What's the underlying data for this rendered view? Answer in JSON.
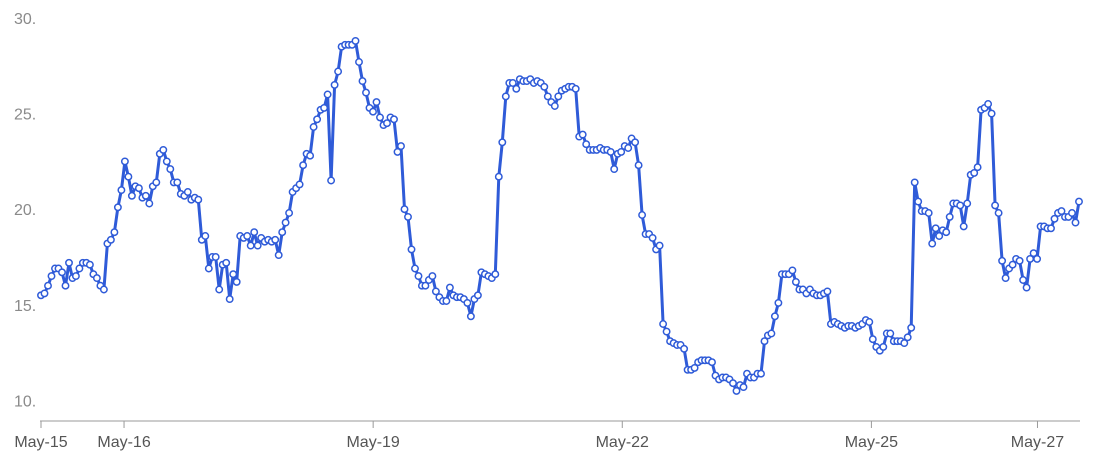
{
  "chart_data": {
    "type": "line",
    "title": "",
    "xlabel": "",
    "ylabel": "",
    "grid": false,
    "legend": "none",
    "line_color": "#2f5bd8",
    "marker_fill": "#ffffff",
    "ylim": [
      9.5,
      30
    ],
    "y_ticks": [
      "10.",
      "15.",
      "20.",
      "25.",
      "30."
    ],
    "y_tick_values": [
      10,
      15,
      20,
      25,
      30
    ],
    "x_ticks": [
      {
        "label": "May-15",
        "day": 0
      },
      {
        "label": "May-16",
        "day": 1
      },
      {
        "label": "May-19",
        "day": 4
      },
      {
        "label": "May-22",
        "day": 7
      },
      {
        "label": "May-25",
        "day": 10
      },
      {
        "label": "May-27",
        "day": 12
      }
    ],
    "xlim_days": [
      0,
      12.5
    ],
    "series": [
      {
        "values": [
          15.5,
          15.6,
          16.0,
          16.5,
          16.9,
          16.9,
          16.7,
          16.0,
          17.2,
          16.4,
          16.5,
          16.9,
          17.2,
          17.2,
          17.1,
          16.6,
          16.4,
          16.0,
          15.8,
          18.2,
          18.4,
          18.8,
          20.1,
          21.0,
          22.5,
          21.7,
          20.7,
          21.2,
          21.1,
          20.6,
          20.7,
          20.3,
          21.2,
          21.4,
          22.9,
          23.1,
          22.5,
          22.1,
          21.4,
          21.4,
          20.8,
          20.7,
          20.9,
          20.5,
          20.6,
          20.5,
          18.4,
          18.6,
          16.9,
          17.5,
          17.5,
          15.8,
          17.1,
          17.2,
          15.3,
          16.6,
          16.2,
          18.6,
          18.5,
          18.6,
          18.1,
          18.8,
          18.1,
          18.5,
          18.3,
          18.4,
          18.3,
          18.4,
          17.6,
          18.8,
          19.3,
          19.8,
          20.9,
          21.1,
          21.3,
          22.3,
          22.9,
          22.8,
          24.3,
          24.7,
          25.2,
          25.3,
          26.0,
          21.5,
          26.5,
          27.2,
          28.5,
          28.6,
          28.6,
          28.6,
          28.8,
          27.7,
          26.7,
          26.1,
          25.3,
          25.1,
          25.6,
          24.8,
          24.4,
          24.5,
          24.8,
          24.7,
          23.0,
          23.3,
          20.0,
          19.6,
          17.9,
          16.9,
          16.5,
          16.0,
          16.0,
          16.3,
          16.5,
          15.7,
          15.4,
          15.2,
          15.2,
          15.9,
          15.5,
          15.4,
          15.4,
          15.3,
          15.1,
          14.4,
          15.3,
          15.5,
          16.7,
          16.6,
          16.5,
          16.4,
          16.6,
          21.7,
          23.5,
          25.9,
          26.6,
          26.6,
          26.3,
          26.8,
          26.7,
          26.7,
          26.8,
          26.6,
          26.7,
          26.6,
          26.4,
          25.9,
          25.6,
          25.4,
          25.9,
          26.2,
          26.3,
          26.4,
          26.4,
          26.3,
          23.8,
          23.9,
          23.4,
          23.1,
          23.1,
          23.1,
          23.2,
          23.1,
          23.1,
          23.0,
          22.1,
          22.9,
          23.0,
          23.3,
          23.2,
          23.7,
          23.5,
          22.3,
          19.7,
          18.7,
          18.7,
          18.5,
          17.9,
          18.1,
          14.0,
          13.6,
          13.1,
          13.0,
          12.9,
          12.9,
          12.7,
          11.6,
          11.6,
          11.7,
          12.0,
          12.1,
          12.1,
          12.1,
          12.0,
          11.3,
          11.1,
          11.2,
          11.2,
          11.1,
          10.9,
          10.5,
          10.8,
          10.7,
          11.4,
          11.2,
          11.2,
          11.4,
          11.4,
          13.1,
          13.4,
          13.5,
          14.4,
          15.1,
          16.6,
          16.6,
          16.6,
          16.8,
          16.2,
          15.8,
          15.8,
          15.6,
          15.8,
          15.6,
          15.5,
          15.5,
          15.6,
          15.7,
          14.0,
          14.1,
          14.0,
          13.9,
          13.8,
          13.9,
          13.9,
          13.8,
          13.9,
          14.0,
          14.2,
          14.1,
          13.2,
          12.8,
          12.6,
          12.8,
          13.5,
          13.5,
          13.1,
          13.1,
          13.1,
          13.0,
          13.3,
          13.8,
          21.4,
          20.4,
          19.9,
          19.9,
          19.8,
          18.2,
          19.0,
          18.6,
          18.9,
          18.8,
          19.6,
          20.3,
          20.3,
          20.2,
          19.1,
          20.3,
          21.8,
          21.9,
          22.2,
          25.2,
          25.3,
          25.5,
          25.0,
          20.2,
          19.8,
          17.3,
          16.4,
          16.9,
          17.1,
          17.4,
          17.3,
          16.3,
          15.9,
          17.4,
          17.7,
          17.4,
          19.1,
          19.1,
          19.0,
          19.0,
          19.5,
          19.8,
          19.9,
          19.6,
          19.6,
          19.8,
          19.3,
          20.4
        ]
      }
    ]
  }
}
